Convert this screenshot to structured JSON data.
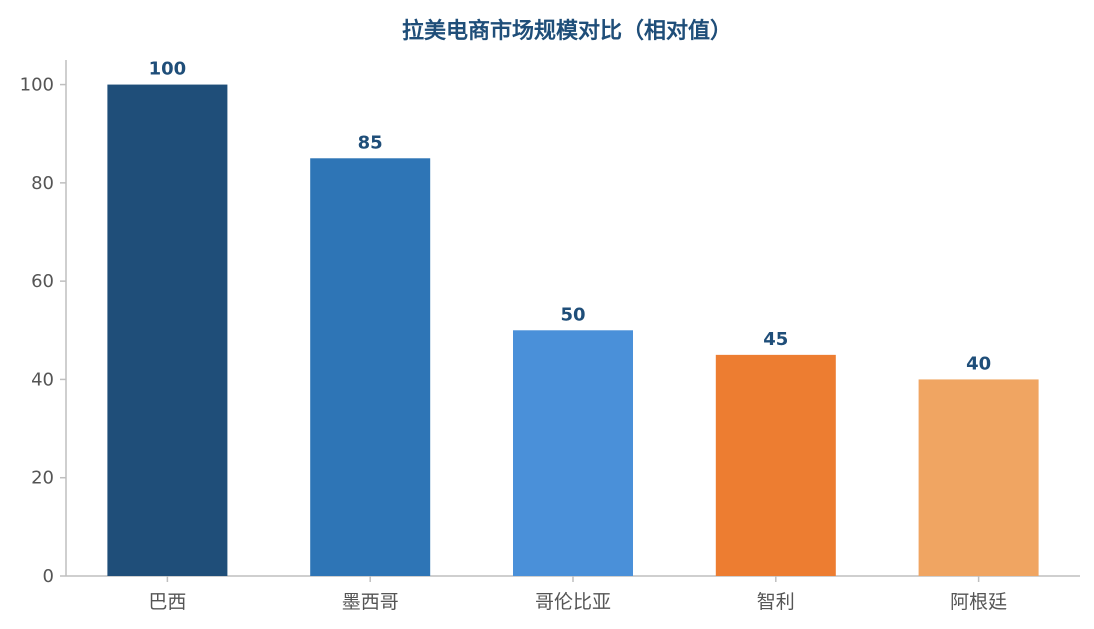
{
  "chart_data": {
    "type": "bar",
    "title": "拉美电商市场规模对比（相对值）",
    "xlabel": "",
    "ylabel": "",
    "categories": [
      "巴西",
      "墨西哥",
      "哥伦比亚",
      "智利",
      "阿根廷"
    ],
    "values": [
      100,
      85,
      50,
      45,
      40
    ],
    "value_labels": [
      "100",
      "85",
      "50",
      "45",
      "40"
    ],
    "colors": [
      "#1f4e79",
      "#2e75b6",
      "#4a90d9",
      "#ed7d31",
      "#f0a562"
    ],
    "ylim": [
      0,
      105
    ],
    "yticks": [
      0,
      20,
      40,
      60,
      80,
      100
    ],
    "ytick_labels": [
      "0",
      "20",
      "40",
      "60",
      "80",
      "100"
    ],
    "grid": false,
    "legend": "none"
  }
}
